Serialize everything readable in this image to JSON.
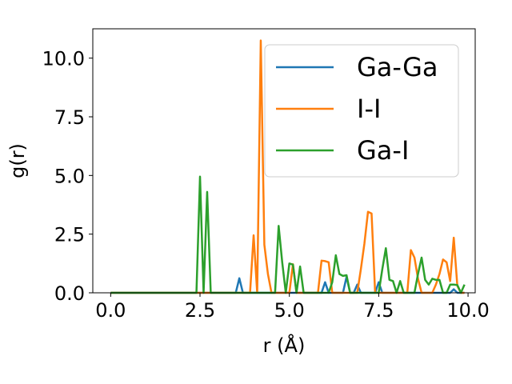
{
  "chart_data": {
    "type": "line",
    "title": "",
    "xlabel": "r (Å)",
    "ylabel": "g(r)",
    "xlim": [
      -0.5,
      10.2
    ],
    "ylim": [
      0,
      11.25
    ],
    "xticks": [
      "0.0",
      "2.5",
      "5.0",
      "7.5",
      "10.0"
    ],
    "yticks": [
      "0.0",
      "2.5",
      "5.0",
      "7.5",
      "10.0"
    ],
    "grid": false,
    "legend_position": "top-right",
    "series": [
      {
        "name": "Ga-Ga",
        "color": "#1f77b4",
        "x": [
          0.0,
          3.5,
          3.6,
          3.7,
          5.9,
          6.0,
          6.1,
          6.5,
          6.6,
          6.7,
          6.8,
          6.9,
          7.0,
          7.4,
          7.5,
          7.6,
          9.5,
          9.6,
          9.7,
          9.9
        ],
        "y": [
          0.0,
          0.0,
          0.62,
          0.0,
          0.0,
          0.45,
          0.0,
          0.0,
          0.68,
          0.0,
          0.0,
          0.35,
          0.0,
          0.0,
          0.45,
          0.0,
          0.0,
          0.15,
          0.0,
          0.0
        ]
      },
      {
        "name": "I-I",
        "color": "#ff7f0e",
        "x": [
          0.0,
          3.9,
          4.0,
          4.1,
          4.2,
          4.3,
          4.4,
          4.5,
          4.6,
          5.0,
          5.1,
          5.2,
          5.3,
          5.8,
          5.9,
          6.0,
          6.1,
          6.2,
          6.3,
          6.9,
          7.0,
          7.1,
          7.2,
          7.3,
          7.4,
          7.5,
          8.3,
          8.4,
          8.5,
          8.6,
          8.7,
          9.0,
          9.1,
          9.2,
          9.3,
          9.4,
          9.5,
          9.6,
          9.7,
          9.8,
          9.9
        ],
        "y": [
          0.0,
          0.0,
          2.45,
          0.0,
          10.75,
          2.05,
          0.8,
          0.0,
          0.0,
          0.0,
          1.22,
          0.0,
          0.0,
          0.0,
          1.37,
          1.35,
          1.3,
          0.0,
          0.0,
          0.0,
          1.0,
          2.1,
          3.45,
          3.38,
          0.0,
          0.0,
          0.0,
          1.82,
          1.5,
          0.6,
          0.0,
          0.0,
          0.35,
          0.8,
          1.42,
          1.3,
          0.5,
          2.35,
          0.3,
          0.0,
          0.0
        ]
      },
      {
        "name": "Ga-I",
        "color": "#2ca02c",
        "x": [
          0.0,
          2.4,
          2.5,
          2.6,
          2.7,
          2.8,
          4.5,
          4.6,
          4.7,
          4.8,
          4.9,
          5.0,
          5.1,
          5.2,
          5.3,
          5.4,
          6.1,
          6.2,
          6.3,
          6.4,
          6.5,
          6.6,
          6.7,
          7.5,
          7.6,
          7.7,
          7.8,
          7.9,
          8.0,
          8.1,
          8.2,
          8.3,
          8.5,
          8.6,
          8.7,
          8.8,
          8.9,
          9.0,
          9.1,
          9.2,
          9.3,
          9.4,
          9.5,
          9.6,
          9.7,
          9.8,
          9.9
        ],
        "y": [
          0.0,
          0.0,
          4.95,
          0.0,
          4.3,
          0.0,
          0.0,
          0.0,
          2.85,
          1.3,
          0.0,
          1.25,
          1.2,
          0.0,
          1.12,
          0.0,
          0.0,
          0.45,
          1.6,
          0.8,
          0.72,
          0.75,
          0.0,
          0.0,
          1.0,
          1.9,
          0.55,
          0.5,
          0.0,
          0.5,
          0.0,
          0.0,
          0.0,
          0.8,
          1.5,
          0.55,
          0.35,
          0.6,
          0.55,
          0.55,
          0.0,
          0.0,
          0.35,
          0.35,
          0.33,
          0.0,
          0.35
        ]
      }
    ]
  }
}
